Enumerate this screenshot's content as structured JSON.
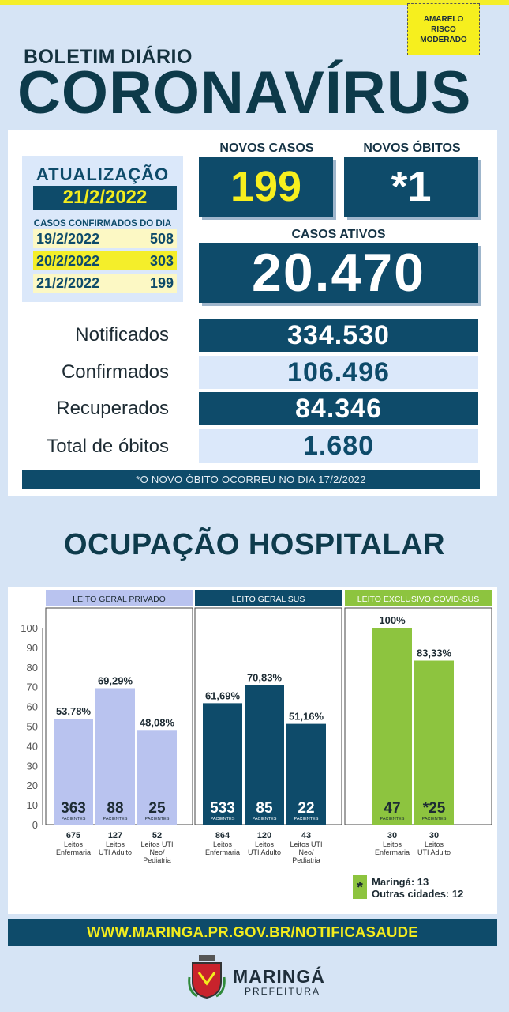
{
  "risk": {
    "line1": "AMARELO",
    "line2": "RISCO",
    "line3": "MODERADO"
  },
  "header": {
    "subtitle": "BOLETIM DIÁRIO",
    "title": "CORONAVÍRUS"
  },
  "update": {
    "label": "ATUALIZAÇÃO",
    "date": "21/2/2022",
    "confirmed_title": "CASOS CONFIRMADOS DO DIA",
    "rows": [
      {
        "date": "19/2/2022",
        "value": "508"
      },
      {
        "date": "20/2/2022",
        "value": "303"
      },
      {
        "date": "21/2/2022",
        "value": "199"
      }
    ]
  },
  "new_cases": {
    "label": "NOVOS CASOS",
    "value": "199"
  },
  "new_deaths": {
    "label": "NOVOS ÓBITOS",
    "value": "*1"
  },
  "active": {
    "label": "CASOS ATIVOS",
    "value": "20.470"
  },
  "stats": [
    {
      "label": "Notificados",
      "value": "334.530"
    },
    {
      "label": "Confirmados",
      "value": "106.496"
    },
    {
      "label": "Recuperados",
      "value": "84.346"
    },
    {
      "label": "Total de óbitos",
      "value": "1.680"
    }
  ],
  "note": "*O NOVO  ÓBITO OCORREU NO DIA 17/2/2022",
  "occupancy_title": "OCUPAÇÃO HOSPITALAR",
  "chart_data": {
    "type": "bar",
    "ylim": [
      0,
      100
    ],
    "yticks": [
      0,
      10,
      20,
      30,
      40,
      50,
      60,
      70,
      80,
      90,
      100
    ],
    "groups": [
      {
        "name": "LEITO GERAL PRIVADO",
        "color": "#b9c3ef",
        "header_color": "#b9c3ef",
        "bars": [
          {
            "value": 53.78,
            "label": "53,78%",
            "patients": "363",
            "beds": "675",
            "cat1": "Leitos",
            "cat2": "Enfermaria",
            "cat3": ""
          },
          {
            "value": 69.29,
            "label": "69,29%",
            "patients": "88",
            "beds": "127",
            "cat1": "Leitos",
            "cat2": "UTI Adulto",
            "cat3": ""
          },
          {
            "value": 48.08,
            "label": "48,08%",
            "patients": "25",
            "beds": "52",
            "cat1": "Leitos UTI",
            "cat2": "Neo/",
            "cat3": "Pediatria"
          }
        ]
      },
      {
        "name": "LEITO GERAL SUS",
        "color": "#0e4b6a",
        "header_color": "#0e4b6a",
        "bars": [
          {
            "value": 61.69,
            "label": "61,69%",
            "patients": "533",
            "beds": "864",
            "cat1": "Leitos",
            "cat2": "Enfermaria",
            "cat3": ""
          },
          {
            "value": 70.83,
            "label": "70,83%",
            "patients": "85",
            "beds": "120",
            "cat1": "Leitos",
            "cat2": "UTI Adulto",
            "cat3": ""
          },
          {
            "value": 51.16,
            "label": "51,16%",
            "patients": "22",
            "beds": "43",
            "cat1": "Leitos UTI",
            "cat2": "Neo/",
            "cat3": "Pediatria"
          }
        ]
      },
      {
        "name": "LEITO EXCLUSIVO COVID-SUS",
        "color": "#8dc43f",
        "header_color": "#8dc43f",
        "bars": [
          {
            "value": 100,
            "label": "100%",
            "patients": "47",
            "beds": "30",
            "cat1": "Leitos",
            "cat2": "Enfermaria",
            "cat3": ""
          },
          {
            "value": 83.33,
            "label": "83,33%",
            "patients": "*25",
            "beds": "30",
            "cat1": "Leitos",
            "cat2": "UTI Adulto",
            "cat3": ""
          }
        ]
      }
    ],
    "patients_word": "PACIENTES",
    "legend": {
      "line1": "Maringá: 13",
      "line2": "Outras cidades: 12"
    }
  },
  "footer": {
    "url": "WWW.MARINGA.PR.GOV.BR/NOTIFICASAUDE"
  },
  "logo": {
    "name": "MARINGÁ",
    "sub": "PREFEITURA"
  }
}
